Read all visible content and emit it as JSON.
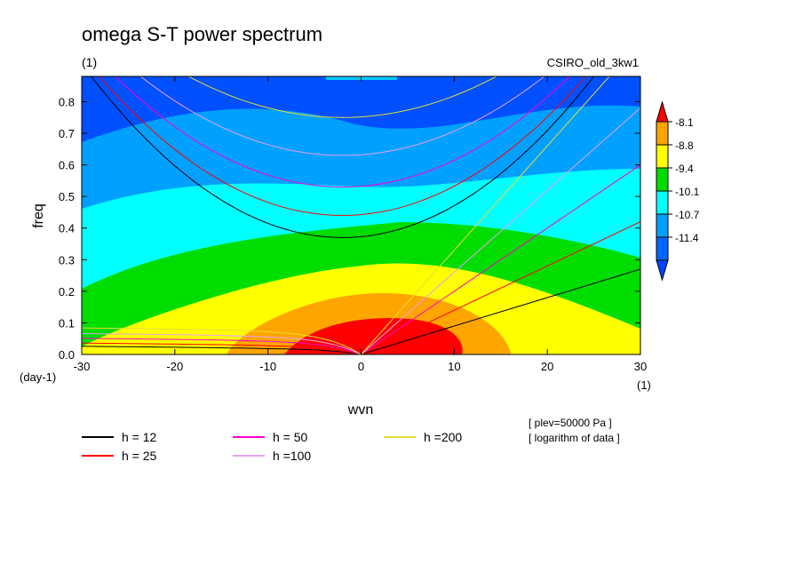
{
  "chart_data": {
    "type": "heatmap",
    "title": "omega S-T power spectrum",
    "subtitle_left": "(1)",
    "subtitle_right": "CSIRO_old_3kw1",
    "xlabel": "wvn",
    "ylabel": "freq",
    "x_unit": "(1)",
    "y_unit": "(day-1)",
    "xlim": [
      -30,
      30
    ],
    "ylim": [
      0.0,
      0.88
    ],
    "x_ticks": [
      "-30",
      "-20",
      "-10",
      "0",
      "10",
      "20",
      "30"
    ],
    "y_ticks": [
      "0.0",
      "0.1",
      "0.2",
      "0.3",
      "0.4",
      "0.5",
      "0.6",
      "0.7",
      "0.8"
    ],
    "colorbar": {
      "labels": [
        "-8.1",
        "-8.8",
        "-9.4",
        "-10.1",
        "-10.7",
        "-11.4"
      ],
      "colors": [
        "#ff0000",
        "#ffa500",
        "#ffff00",
        "#00dd00",
        "#00ffff",
        "#00a0ff",
        "#0066ff",
        "#0044ff"
      ]
    },
    "dispersion_curves": [
      {
        "label": "h = 12",
        "color": "#000000"
      },
      {
        "label": "h = 25",
        "color": "#ff0000"
      },
      {
        "label": "h = 50",
        "color": "#ff00c8"
      },
      {
        "label": "h =100",
        "color": "#e6a0f0"
      },
      {
        "label": "h =200",
        "color": "#e6dc32"
      }
    ],
    "annotations": [
      "[ plev=50000 Pa ]",
      "[ logarithm of data ]"
    ]
  }
}
